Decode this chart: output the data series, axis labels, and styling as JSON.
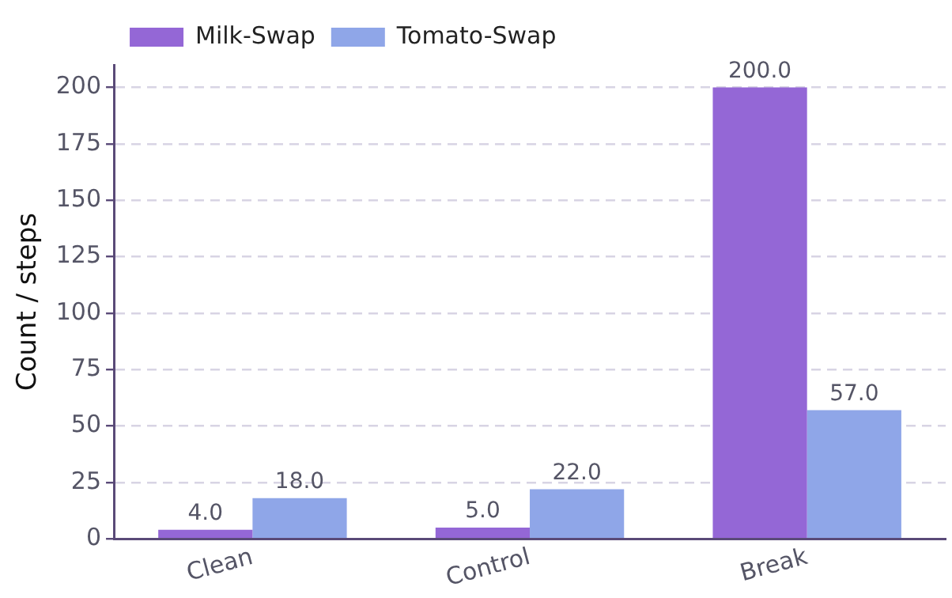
{
  "chart_data": {
    "type": "bar",
    "ylabel": "Count / steps",
    "categories": [
      "Clean",
      "Control",
      "Break"
    ],
    "series": [
      {
        "name": "Milk-Swap",
        "color": "#9467d6",
        "values": [
          4,
          5,
          200
        ],
        "value_labels": [
          "4.0",
          "5.0",
          "200.0"
        ]
      },
      {
        "name": "Tomato-Swap",
        "color": "#8fa6e8",
        "values": [
          18,
          22,
          57
        ],
        "value_labels": [
          "18.0",
          "22.0",
          "57.0"
        ]
      }
    ],
    "ylim": [
      0,
      210
    ],
    "yticks": [
      0,
      25,
      50,
      75,
      100,
      125,
      150,
      175,
      200
    ],
    "grid": "y",
    "legend": "top left"
  }
}
